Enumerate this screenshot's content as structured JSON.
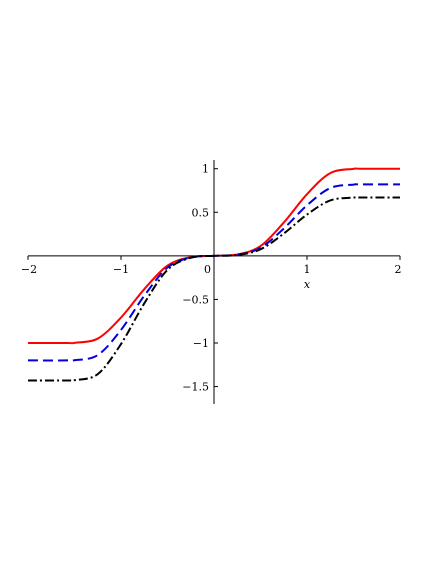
{
  "chart_data": {
    "type": "line",
    "xlabel": "x",
    "ylabel": "",
    "xlim": [
      -2,
      2
    ],
    "ylim": [
      -1.7,
      1.1
    ],
    "grid": false,
    "legend": "none",
    "x_ticks": [
      {
        "value": -2,
        "label": "−2"
      },
      {
        "value": -1,
        "label": "−1"
      },
      {
        "value": 0,
        "label": "0"
      },
      {
        "value": 1,
        "label": "1"
      },
      {
        "value": 2,
        "label": "2"
      }
    ],
    "y_ticks": [
      {
        "value": -1.5,
        "label": "−1.5"
      },
      {
        "value": -1,
        "label": "−1"
      },
      {
        "value": -0.5,
        "label": "−0.5"
      },
      {
        "value": 0.5,
        "label": "0.5"
      },
      {
        "value": 1,
        "label": "1"
      }
    ],
    "series": [
      {
        "color": "#ff0000",
        "style": "solid",
        "x": [
          -2,
          -1.5708,
          -1.5,
          -1.25,
          -1,
          -0.75,
          -0.5,
          -0.25,
          0,
          0.25,
          0.5,
          0.75,
          1,
          1.25,
          1.5,
          1.5708,
          2
        ],
        "y": [
          -1,
          -1,
          -0.998,
          -0.949,
          -0.708,
          -0.382,
          -0.112,
          -0.0154,
          0,
          0.0154,
          0.112,
          0.382,
          0.708,
          0.949,
          0.998,
          1,
          1
        ]
      },
      {
        "color": "#0000dd",
        "style": "dashed",
        "x": [
          -2,
          -1.5708,
          -1.5,
          -1.25,
          -1,
          -0.75,
          -0.5,
          -0.25,
          0,
          0.25,
          0.5,
          0.75,
          1,
          1.25,
          1.5,
          1.5708,
          2
        ],
        "y": [
          -1.2,
          -1.2,
          -1.198,
          -1.139,
          -0.85,
          -0.458,
          -0.134,
          -0.0185,
          0,
          0.0126,
          0.092,
          0.313,
          0.58,
          0.778,
          0.818,
          0.82,
          0.82
        ]
      },
      {
        "color": "#000000",
        "style": "dashdot",
        "x": [
          -2,
          -1.5708,
          -1.5,
          -1.25,
          -1,
          -0.75,
          -0.5,
          -0.25,
          0,
          0.25,
          0.5,
          0.75,
          1,
          1.25,
          1.5,
          1.5708,
          2
        ],
        "y": [
          -1.43,
          -1.43,
          -1.427,
          -1.357,
          -1.012,
          -0.546,
          -0.16,
          -0.022,
          0,
          0.0103,
          0.075,
          0.256,
          0.474,
          0.636,
          0.669,
          0.67,
          0.67
        ]
      }
    ]
  }
}
